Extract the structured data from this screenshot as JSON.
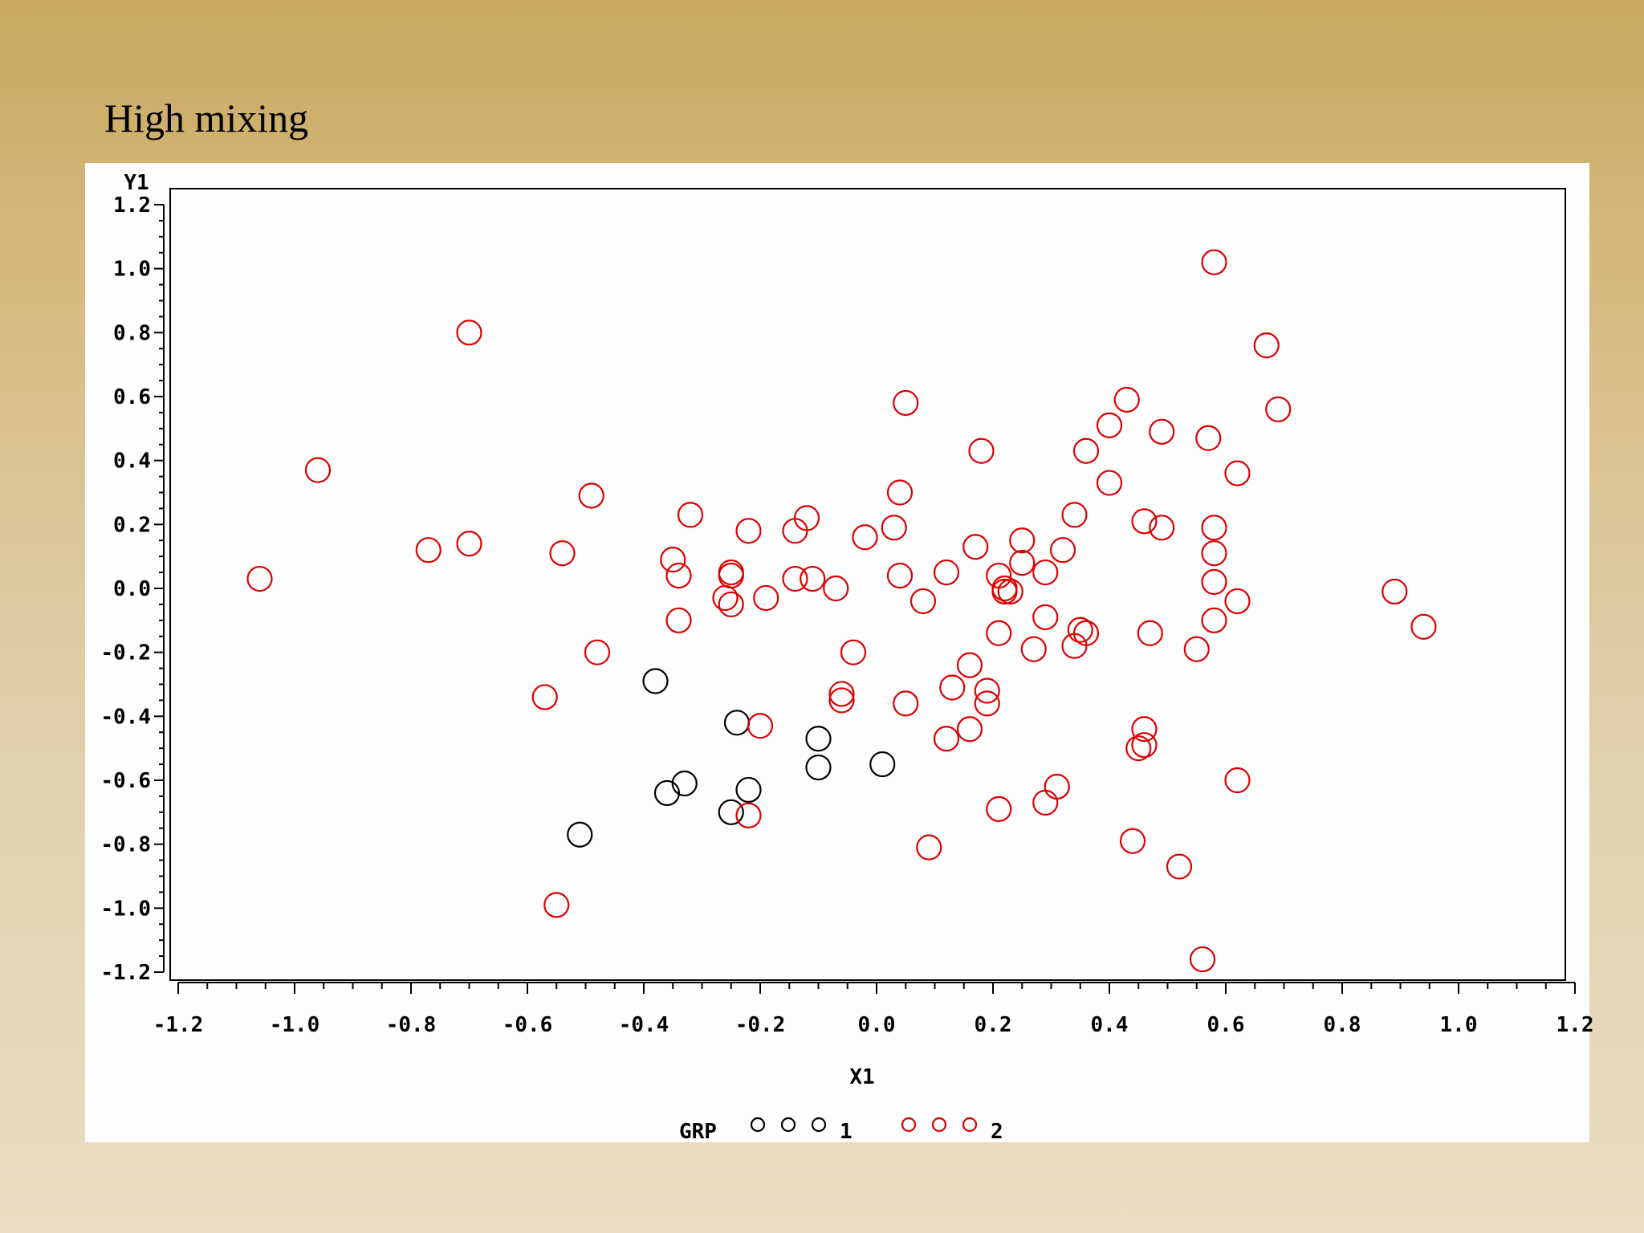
{
  "slide": {
    "title": "High mixing"
  },
  "chart_data": {
    "type": "scatter",
    "title": "High mixing",
    "xlabel": "X1",
    "ylabel": "Y1",
    "xlim": [
      -1.2,
      1.2
    ],
    "ylim": [
      -1.2,
      1.2
    ],
    "x_ticks": [
      -1.2,
      -1.0,
      -0.8,
      -0.6,
      -0.4,
      -0.2,
      0.0,
      0.2,
      0.4,
      0.6,
      0.8,
      1.0,
      1.2
    ],
    "y_ticks": [
      -1.2,
      -1.0,
      -0.8,
      -0.6,
      -0.4,
      -0.2,
      0.0,
      0.2,
      0.4,
      0.6,
      0.8,
      1.0,
      1.2
    ],
    "x_tick_labels": [
      "-1.2",
      "-1.0",
      "-0.8",
      "-0.6",
      "-0.4",
      "-0.2",
      "0.0",
      "0.2",
      "0.4",
      "0.6",
      "0.8",
      "1.0",
      "1.2"
    ],
    "y_tick_labels": [
      "-1.2",
      "-1.0",
      "-0.8",
      "-0.6",
      "-0.4",
      "-0.2",
      "0.0",
      "0.2",
      "0.4",
      "0.6",
      "0.8",
      "1.0",
      "1.2"
    ],
    "legend": {
      "title": "GRP",
      "placement": "bottom",
      "entries": [
        {
          "label": "1",
          "color": "#000000"
        },
        {
          "label": "2",
          "color": "#dd0000"
        }
      ]
    },
    "series": [
      {
        "name": "1",
        "color": "#000000",
        "marker": "circle",
        "points": [
          [
            -0.38,
            -0.29
          ],
          [
            -0.24,
            -0.42
          ],
          [
            -0.1,
            -0.47
          ],
          [
            -0.1,
            -0.56
          ],
          [
            0.01,
            -0.55
          ],
          [
            -0.33,
            -0.61
          ],
          [
            -0.36,
            -0.64
          ],
          [
            -0.22,
            -0.63
          ],
          [
            -0.25,
            -0.7
          ],
          [
            -0.51,
            -0.77
          ]
        ]
      },
      {
        "name": "2",
        "color": "#dd0000",
        "marker": "circle",
        "points": [
          [
            -1.06,
            0.03
          ],
          [
            -0.96,
            0.37
          ],
          [
            -0.77,
            0.12
          ],
          [
            -0.7,
            0.8
          ],
          [
            -0.7,
            0.14
          ],
          [
            -0.54,
            0.11
          ],
          [
            -0.49,
            0.29
          ],
          [
            -0.48,
            -0.2
          ],
          [
            -0.57,
            -0.34
          ],
          [
            -0.55,
            -0.99
          ],
          [
            -0.35,
            0.09
          ],
          [
            -0.34,
            0.04
          ],
          [
            -0.34,
            -0.1
          ],
          [
            -0.32,
            0.23
          ],
          [
            -0.25,
            0.05
          ],
          [
            -0.25,
            0.04
          ],
          [
            -0.26,
            -0.03
          ],
          [
            -0.25,
            -0.05
          ],
          [
            -0.22,
            0.18
          ],
          [
            -0.19,
            -0.03
          ],
          [
            -0.2,
            -0.43
          ],
          [
            -0.22,
            -0.71
          ],
          [
            -0.14,
            0.18
          ],
          [
            -0.12,
            0.22
          ],
          [
            -0.14,
            0.03
          ],
          [
            -0.11,
            0.03
          ],
          [
            -0.07,
            0.0
          ],
          [
            -0.04,
            -0.2
          ],
          [
            -0.06,
            -0.33
          ],
          [
            -0.06,
            -0.35
          ],
          [
            -0.02,
            0.16
          ],
          [
            0.03,
            0.19
          ],
          [
            0.04,
            0.3
          ],
          [
            0.05,
            0.58
          ],
          [
            0.04,
            0.04
          ],
          [
            0.05,
            -0.36
          ],
          [
            0.08,
            -0.04
          ],
          [
            0.09,
            -0.81
          ],
          [
            0.12,
            0.05
          ],
          [
            0.12,
            -0.47
          ],
          [
            0.13,
            -0.31
          ],
          [
            0.16,
            -0.24
          ],
          [
            0.17,
            0.13
          ],
          [
            0.18,
            0.43
          ],
          [
            0.16,
            -0.44
          ],
          [
            0.19,
            -0.32
          ],
          [
            0.19,
            -0.36
          ],
          [
            0.21,
            0.04
          ],
          [
            0.22,
            0.0
          ],
          [
            0.22,
            -0.01
          ],
          [
            0.23,
            -0.01
          ],
          [
            0.21,
            -0.14
          ],
          [
            0.21,
            -0.69
          ],
          [
            0.25,
            0.08
          ],
          [
            0.25,
            0.15
          ],
          [
            0.27,
            -0.19
          ],
          [
            0.29,
            0.05
          ],
          [
            0.29,
            -0.09
          ],
          [
            0.29,
            -0.67
          ],
          [
            0.31,
            -0.62
          ],
          [
            0.32,
            0.12
          ],
          [
            0.34,
            0.23
          ],
          [
            0.34,
            -0.18
          ],
          [
            0.35,
            -0.13
          ],
          [
            0.36,
            -0.14
          ],
          [
            0.36,
            0.43
          ],
          [
            0.4,
            0.51
          ],
          [
            0.4,
            0.33
          ],
          [
            0.43,
            0.59
          ],
          [
            0.44,
            -0.79
          ],
          [
            0.45,
            -0.5
          ],
          [
            0.46,
            -0.49
          ],
          [
            0.46,
            -0.44
          ],
          [
            0.46,
            0.21
          ],
          [
            0.47,
            -0.14
          ],
          [
            0.49,
            0.49
          ],
          [
            0.49,
            0.19
          ],
          [
            0.52,
            -0.87
          ],
          [
            0.55,
            -0.19
          ],
          [
            0.56,
            -1.16
          ],
          [
            0.57,
            0.47
          ],
          [
            0.58,
            0.19
          ],
          [
            0.58,
            0.11
          ],
          [
            0.58,
            0.02
          ],
          [
            0.58,
            -0.1
          ],
          [
            0.58,
            1.02
          ],
          [
            0.62,
            0.36
          ],
          [
            0.62,
            -0.04
          ],
          [
            0.62,
            -0.6
          ],
          [
            0.67,
            0.76
          ],
          [
            0.69,
            0.56
          ],
          [
            0.89,
            -0.01
          ],
          [
            0.94,
            -0.12
          ]
        ]
      }
    ]
  }
}
